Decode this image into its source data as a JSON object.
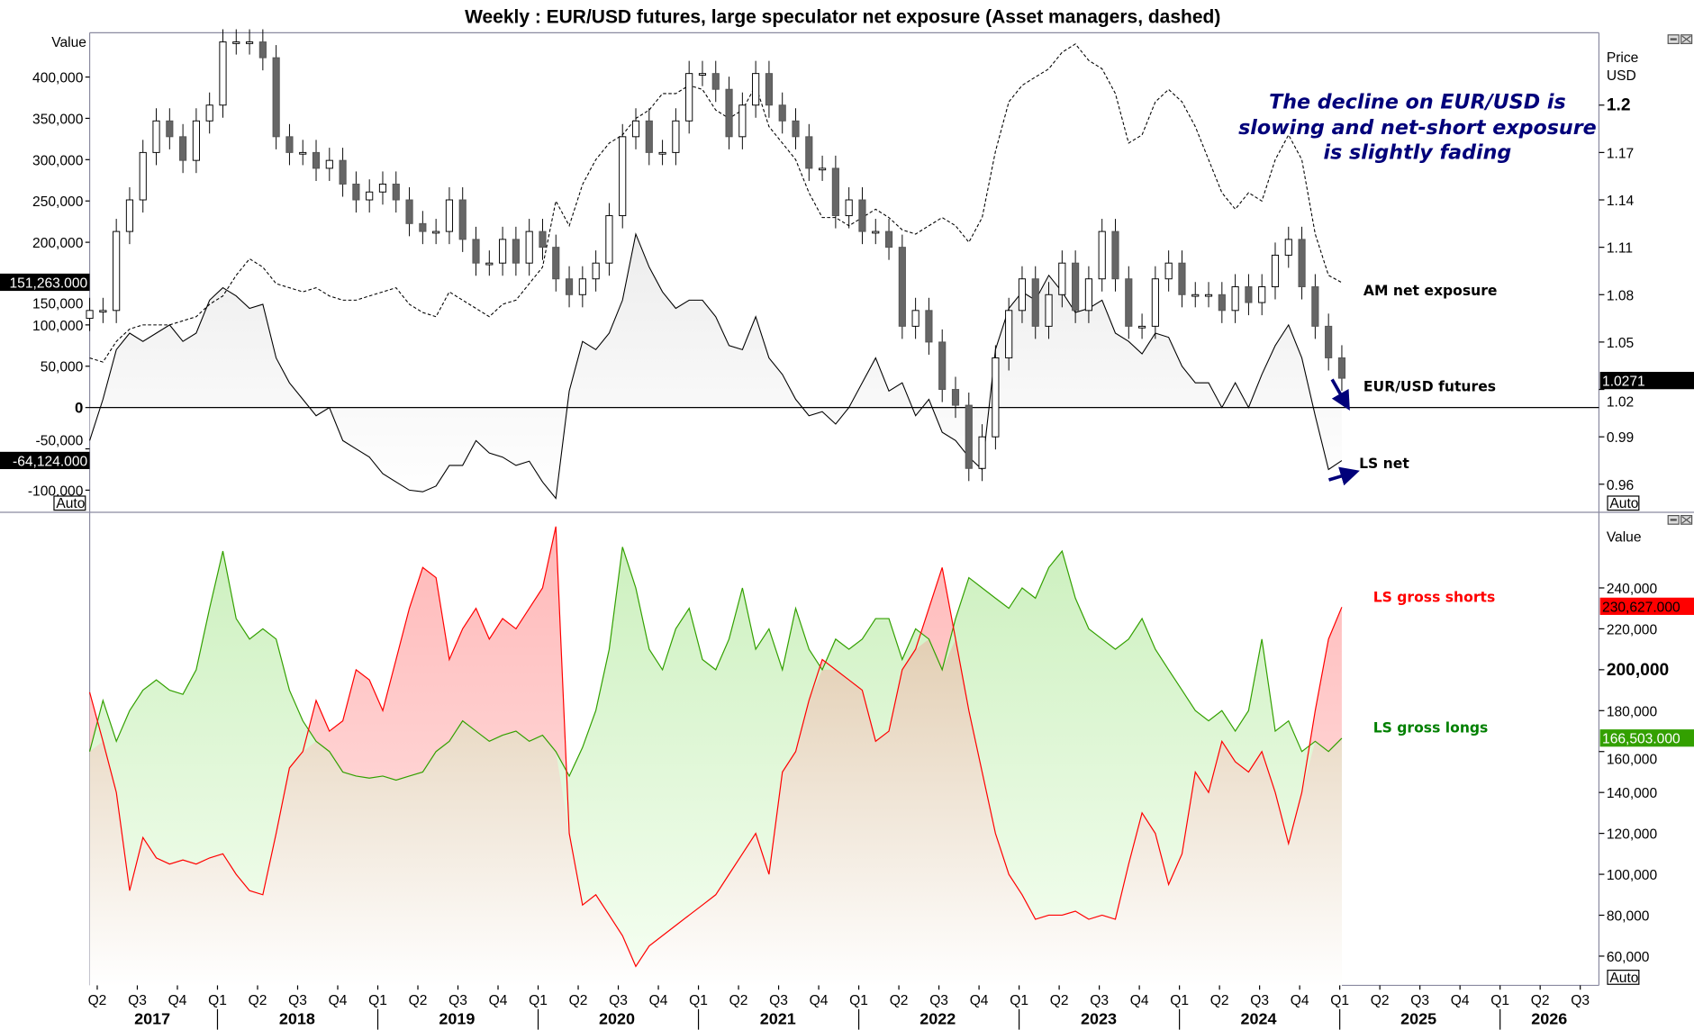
{
  "chart_data": [
    {
      "type": "line",
      "panel": "top",
      "title": "Weekly : EUR/USD futures, large speculator net exposure (Asset managers, dashed)",
      "frequency": "monthly (approx. from weekly)",
      "start": "2017-03",
      "left_axis": {
        "label": "Value",
        "ticks": [
          "400,000",
          "350,000",
          "300,000",
          "250,000",
          "200,000",
          "150,000",
          "100,000",
          "50,000",
          "0",
          "-50,000",
          "-100,000"
        ],
        "tick_values": [
          400000,
          350000,
          300000,
          250000,
          200000,
          150000,
          100000,
          50000,
          0,
          -50000,
          -100000
        ],
        "ylim": [
          -115000,
          450000
        ]
      },
      "right_axis": {
        "label_line1": "Price",
        "label_line2": "USD",
        "ticks": [
          "1.2",
          "1.17",
          "1.14",
          "1.11",
          "1.08",
          "1.05",
          "1.02",
          "0.99",
          "0.96"
        ],
        "tick_values": [
          1.2,
          1.17,
          1.14,
          1.11,
          1.08,
          1.05,
          1.02,
          0.99,
          0.96
        ],
        "ylim": [
          0.95,
          1.245
        ]
      },
      "series": [
        {
          "name": "EUR/USD futures",
          "type": "candlestick",
          "axis": "right",
          "last_label": "1.0271",
          "values": [
            1.07,
            1.07,
            1.12,
            1.14,
            1.17,
            1.19,
            1.18,
            1.165,
            1.19,
            1.2,
            1.24,
            1.24,
            1.24,
            1.23,
            1.18,
            1.17,
            1.17,
            1.16,
            1.165,
            1.15,
            1.14,
            1.145,
            1.15,
            1.14,
            1.125,
            1.12,
            1.12,
            1.14,
            1.115,
            1.1,
            1.1,
            1.115,
            1.1,
            1.12,
            1.11,
            1.09,
            1.08,
            1.09,
            1.1,
            1.13,
            1.18,
            1.19,
            1.17,
            1.17,
            1.19,
            1.22,
            1.22,
            1.21,
            1.18,
            1.2,
            1.22,
            1.2,
            1.19,
            1.18,
            1.16,
            1.16,
            1.13,
            1.14,
            1.12,
            1.12,
            1.11,
            1.06,
            1.07,
            1.05,
            1.02,
            1.01,
            0.97,
            0.99,
            1.04,
            1.07,
            1.09,
            1.06,
            1.08,
            1.1,
            1.07,
            1.09,
            1.12,
            1.09,
            1.06,
            1.06,
            1.09,
            1.1,
            1.08,
            1.08,
            1.08,
            1.07,
            1.085,
            1.075,
            1.085,
            1.105,
            1.115,
            1.085,
            1.06,
            1.04,
            1.0271
          ]
        },
        {
          "name": "LS net",
          "type": "area",
          "axis": "left",
          "last_label": "-64,124.000",
          "values": [
            -40000,
            10000,
            70000,
            90000,
            80000,
            90000,
            100000,
            80000,
            90000,
            130000,
            145000,
            135000,
            120000,
            125000,
            60000,
            30000,
            10000,
            -10000,
            0,
            -40000,
            -50000,
            -60000,
            -80000,
            -90000,
            -100000,
            -102000,
            -95000,
            -70000,
            -70000,
            -40000,
            -55000,
            -60000,
            -70000,
            -65000,
            -90000,
            -110000,
            20000,
            80000,
            70000,
            90000,
            130000,
            210000,
            170000,
            140000,
            120000,
            130000,
            130000,
            110000,
            75000,
            70000,
            110000,
            60000,
            40000,
            10000,
            -10000,
            -5000,
            -20000,
            0,
            30000,
            60000,
            20000,
            30000,
            -10000,
            10000,
            -30000,
            -40000,
            -60000,
            -75000,
            70000,
            120000,
            140000,
            130000,
            160000,
            140000,
            115000,
            120000,
            130000,
            90000,
            80000,
            65000,
            90000,
            85000,
            50000,
            30000,
            30000,
            0,
            30000,
            0,
            40000,
            75000,
            100000,
            60000,
            -10000,
            -75000,
            -64124
          ]
        },
        {
          "name": "AM net exposure",
          "type": "line",
          "style": "dashed",
          "axis": "left",
          "last_label": "151,263.000",
          "values": [
            60000,
            55000,
            80000,
            95000,
            100000,
            100000,
            100000,
            105000,
            110000,
            125000,
            135000,
            160000,
            180000,
            170000,
            150000,
            145000,
            140000,
            145000,
            135000,
            130000,
            130000,
            135000,
            140000,
            145000,
            125000,
            115000,
            110000,
            140000,
            130000,
            120000,
            110000,
            125000,
            130000,
            150000,
            170000,
            250000,
            220000,
            270000,
            300000,
            320000,
            330000,
            350000,
            360000,
            380000,
            380000,
            390000,
            385000,
            360000,
            350000,
            360000,
            390000,
            340000,
            320000,
            300000,
            260000,
            230000,
            230000,
            220000,
            230000,
            240000,
            230000,
            215000,
            210000,
            220000,
            230000,
            220000,
            200000,
            230000,
            310000,
            370000,
            390000,
            400000,
            410000,
            430000,
            440000,
            420000,
            410000,
            380000,
            320000,
            330000,
            370000,
            385000,
            370000,
            340000,
            300000,
            260000,
            240000,
            260000,
            250000,
            300000,
            330000,
            300000,
            210000,
            160000,
            151263
          ]
        }
      ],
      "annotations": {
        "note_line1": "The decline on EUR/USD is",
        "note_line2": "slowing and net-short exposure",
        "note_line3": "is slightly fading",
        "label_am": "AM net exposure",
        "label_fut": "EUR/USD futures",
        "label_ls": "LS net"
      },
      "auto_label": "Auto"
    },
    {
      "type": "area",
      "panel": "bottom",
      "frequency": "monthly (approx. from weekly)",
      "start": "2017-03",
      "right_axis": {
        "label": "Value",
        "ticks": [
          "240,000",
          "220,000",
          "200,000",
          "180,000",
          "160,000",
          "140,000",
          "120,000",
          "100,000",
          "80,000",
          "60,000"
        ],
        "tick_values": [
          240000,
          220000,
          200000,
          180000,
          160000,
          140000,
          120000,
          100000,
          80000,
          60000
        ],
        "ylim": [
          45000,
          276000
        ]
      },
      "series": [
        {
          "name": "LS gross shorts",
          "color": "#ff0000",
          "last_label": "230,627.000",
          "values": [
            189000,
            165000,
            140000,
            92000,
            118000,
            108000,
            105000,
            107000,
            105000,
            108000,
            110000,
            100000,
            92000,
            90000,
            120000,
            152000,
            160000,
            185000,
            170000,
            175000,
            200000,
            195000,
            180000,
            205000,
            230000,
            250000,
            245000,
            205000,
            220000,
            230000,
            215000,
            225000,
            220000,
            230000,
            240000,
            270000,
            120000,
            85000,
            90000,
            80000,
            70000,
            55000,
            65000,
            70000,
            75000,
            80000,
            85000,
            90000,
            100000,
            110000,
            120000,
            100000,
            150000,
            160000,
            185000,
            205000,
            200000,
            195000,
            190000,
            165000,
            170000,
            200000,
            210000,
            230000,
            250000,
            215000,
            180000,
            150000,
            120000,
            100000,
            90000,
            78000,
            80000,
            80000,
            82000,
            78000,
            80000,
            78000,
            105000,
            130000,
            120000,
            95000,
            110000,
            150000,
            140000,
            165000,
            155000,
            150000,
            160000,
            140000,
            115000,
            140000,
            180000,
            215000,
            230627
          ]
        },
        {
          "name": "LS gross longs",
          "color": "#33a000",
          "last_label": "166,503.000",
          "values": [
            160000,
            185000,
            165000,
            180000,
            190000,
            195000,
            190000,
            188000,
            200000,
            230000,
            258000,
            225000,
            215000,
            220000,
            215000,
            190000,
            175000,
            165000,
            160000,
            150000,
            148000,
            147000,
            148000,
            146000,
            148000,
            150000,
            160000,
            165000,
            175000,
            170000,
            165000,
            168000,
            170000,
            165000,
            168000,
            160000,
            148000,
            162000,
            180000,
            210000,
            260000,
            240000,
            210000,
            200000,
            220000,
            230000,
            205000,
            200000,
            215000,
            240000,
            210000,
            220000,
            200000,
            230000,
            210000,
            200000,
            215000,
            210000,
            215000,
            225000,
            225000,
            205000,
            220000,
            215000,
            200000,
            225000,
            245000,
            240000,
            235000,
            230000,
            240000,
            235000,
            250000,
            258000,
            235000,
            220000,
            215000,
            210000,
            215000,
            225000,
            210000,
            200000,
            190000,
            180000,
            175000,
            180000,
            170000,
            180000,
            215000,
            170000,
            175000,
            160000,
            165000,
            160000,
            166503
          ]
        }
      ],
      "annotations": {
        "label_shorts": "LS gross shorts",
        "label_longs": "LS gross longs"
      },
      "auto_label": "Auto"
    }
  ],
  "x_axis": {
    "quarters": [
      "Q2",
      "Q3",
      "Q4",
      "Q1",
      "Q2",
      "Q3",
      "Q4",
      "Q1",
      "Q2",
      "Q3",
      "Q4",
      "Q1",
      "Q2",
      "Q3",
      "Q4",
      "Q1",
      "Q2",
      "Q3",
      "Q4",
      "Q1",
      "Q2",
      "Q3",
      "Q4",
      "Q1",
      "Q2",
      "Q3",
      "Q4",
      "Q1",
      "Q2",
      "Q3",
      "Q4",
      "Q1",
      "Q2",
      "Q3",
      "Q4",
      "Q1",
      "Q2",
      "Q3"
    ],
    "years": [
      "2017",
      "2018",
      "2019",
      "2020",
      "2021",
      "2022",
      "2023",
      "2024",
      "2025",
      "2026"
    ]
  },
  "colors": {
    "annotation": "#00007a",
    "shorts": "#ff0000",
    "longs": "#33a000",
    "longs_label": "#008000",
    "arrow": "#00007a"
  }
}
